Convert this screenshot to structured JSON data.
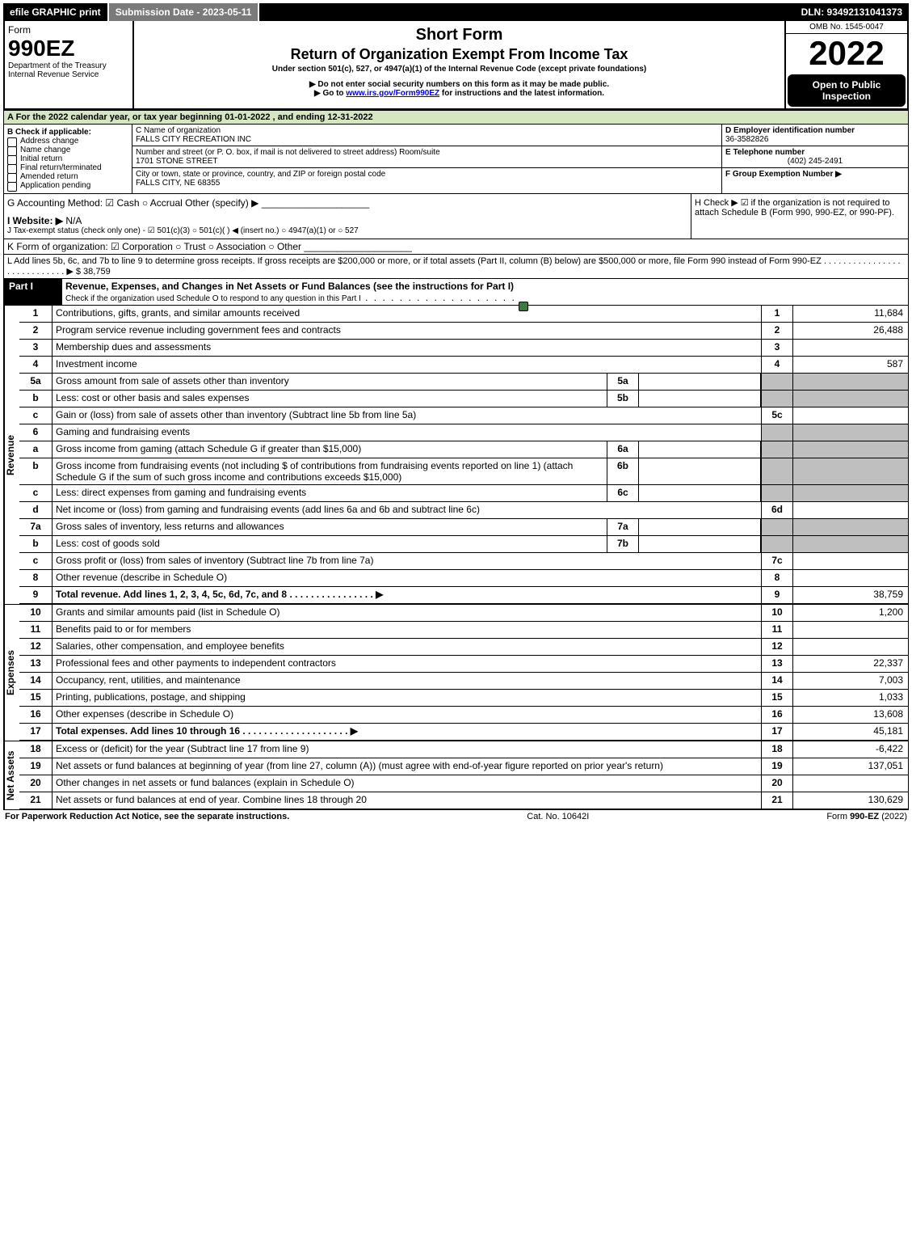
{
  "topbar": {
    "efile": "efile GRAPHIC print",
    "sub": "Submission Date - 2023-05-11",
    "dln": "DLN: 93492131041373"
  },
  "header": {
    "form": "Form",
    "formnum": "990EZ",
    "dept": "Department of the Treasury\nInternal Revenue Service",
    "title1": "Short Form",
    "title2": "Return of Organization Exempt From Income Tax",
    "under": "Under section 501(c), 527, or 4947(a)(1) of the Internal Revenue Code (except private foundations)",
    "warn": "▶ Do not enter social security numbers on this form as it may be made public.",
    "goto": "▶ Go to www.irs.gov/Form990EZ for instructions and the latest information.",
    "omb": "OMB No. 1545-0047",
    "year": "2022",
    "open": "Open to Public Inspection"
  },
  "A": "A  For the 2022 calendar year, or tax year beginning 01-01-2022 , and ending 12-31-2022",
  "B": {
    "title": "B  Check if applicable:",
    "opts": [
      "Address change",
      "Name change",
      "Initial return",
      "Final return/terminated",
      "Amended return",
      "Application pending"
    ]
  },
  "C": {
    "lab": "C Name of organization",
    "name": "FALLS CITY RECREATION INC",
    "addrlab": "Number and street (or P. O. box, if mail is not delivered to street address)        Room/suite",
    "addr": "1701 STONE STREET",
    "citylab": "City or town, state or province, country, and ZIP or foreign postal code",
    "city": "FALLS CITY, NE  68355"
  },
  "D": {
    "lab": "D Employer identification number",
    "val": "36-3582826"
  },
  "E": {
    "lab": "E Telephone number",
    "val": "(402) 245-2491"
  },
  "F": {
    "lab": "F Group Exemption Number  ▶"
  },
  "G": "G Accounting Method:   ☑ Cash   ○ Accrual   Other (specify) ▶ ____________________",
  "H": "H   Check ▶ ☑ if the organization is not required to attach Schedule B (Form 990, 990-EZ, or 990-PF).",
  "I": "I Website: ▶ N/A",
  "J": "J Tax-exempt status (check only one) - ☑ 501(c)(3)  ○ 501(c)(  ) ◀ (insert no.)  ○ 4947(a)(1) or  ○ 527",
  "K": "K Form of organization:   ☑ Corporation   ○ Trust   ○ Association   ○ Other  ____________________",
  "L": "L Add lines 5b, 6c, and 7b to line 9 to determine gross receipts. If gross receipts are $200,000 or more, or if total assets (Part II, column (B) below) are $500,000 or more, file Form 990 instead of Form 990-EZ .  .  .  .  .  .  .  .  .  .  .  .  .  .  .  .  .  .  .  .  .  .  .  .  .  .  .  .  ▶ $ 38,759",
  "part1": {
    "title": "Part I",
    "desc": "Revenue, Expenses, and Changes in Net Assets or Fund Balances (see the instructions for Part I)",
    "check": "Check if the organization used Schedule O to respond to any question in this Part I"
  },
  "revenue": [
    {
      "n": "1",
      "d": "Contributions, gifts, grants, and similar amounts received",
      "l": "1",
      "v": "11,684"
    },
    {
      "n": "2",
      "d": "Program service revenue including government fees and contracts",
      "l": "2",
      "v": "26,488"
    },
    {
      "n": "3",
      "d": "Membership dues and assessments",
      "l": "3",
      "v": ""
    },
    {
      "n": "4",
      "d": "Investment income",
      "l": "4",
      "v": "587"
    },
    {
      "n": "5a",
      "d": "Gross amount from sale of assets other than inventory",
      "mini": "5a",
      "grey": true
    },
    {
      "n": "b",
      "d": "Less: cost or other basis and sales expenses",
      "mini": "5b",
      "grey": true
    },
    {
      "n": "c",
      "d": "Gain or (loss) from sale of assets other than inventory (Subtract line 5b from line 5a)",
      "l": "5c",
      "v": ""
    },
    {
      "n": "6",
      "d": "Gaming and fundraising events",
      "grey": true,
      "noline": true
    },
    {
      "n": "a",
      "d": "Gross income from gaming (attach Schedule G if greater than $15,000)",
      "mini": "6a",
      "grey": true
    },
    {
      "n": "b",
      "d": "Gross income from fundraising events (not including $                     of contributions from fundraising events reported on line 1) (attach Schedule G if the sum of such gross income and contributions exceeds $15,000)",
      "mini": "6b",
      "grey": true
    },
    {
      "n": "c",
      "d": "Less: direct expenses from gaming and fundraising events",
      "mini": "6c",
      "grey": true
    },
    {
      "n": "d",
      "d": "Net income or (loss) from gaming and fundraising events (add lines 6a and 6b and subtract line 6c)",
      "l": "6d",
      "v": ""
    },
    {
      "n": "7a",
      "d": "Gross sales of inventory, less returns and allowances",
      "mini": "7a",
      "grey": true
    },
    {
      "n": "b",
      "d": "Less: cost of goods sold",
      "mini": "7b",
      "grey": true
    },
    {
      "n": "c",
      "d": "Gross profit or (loss) from sales of inventory (Subtract line 7b from line 7a)",
      "l": "7c",
      "v": ""
    },
    {
      "n": "8",
      "d": "Other revenue (describe in Schedule O)",
      "l": "8",
      "v": ""
    },
    {
      "n": "9",
      "d": "Total revenue. Add lines 1, 2, 3, 4, 5c, 6d, 7c, and 8    .   .   .   .   .   .   .   .   .   .   .   .   .   .   .   .      ▶",
      "l": "9",
      "v": "38,759",
      "bold": true
    }
  ],
  "expenses": [
    {
      "n": "10",
      "d": "Grants and similar amounts paid (list in Schedule O)",
      "l": "10",
      "v": "1,200"
    },
    {
      "n": "11",
      "d": "Benefits paid to or for members",
      "l": "11",
      "v": ""
    },
    {
      "n": "12",
      "d": "Salaries, other compensation, and employee benefits",
      "l": "12",
      "v": ""
    },
    {
      "n": "13",
      "d": "Professional fees and other payments to independent contractors",
      "l": "13",
      "v": "22,337"
    },
    {
      "n": "14",
      "d": "Occupancy, rent, utilities, and maintenance",
      "l": "14",
      "v": "7,003"
    },
    {
      "n": "15",
      "d": "Printing, publications, postage, and shipping",
      "l": "15",
      "v": "1,033"
    },
    {
      "n": "16",
      "d": "Other expenses (describe in Schedule O)",
      "l": "16",
      "v": "13,608"
    },
    {
      "n": "17",
      "d": "Total expenses. Add lines 10 through 16       .   .   .   .   .   .   .   .   .   .   .   .   .   .   .   .   .   .   .   .    ▶",
      "l": "17",
      "v": "45,181",
      "bold": true
    }
  ],
  "netassets": [
    {
      "n": "18",
      "d": "Excess or (deficit) for the year (Subtract line 17 from line 9)",
      "l": "18",
      "v": "-6,422"
    },
    {
      "n": "19",
      "d": "Net assets or fund balances at beginning of year (from line 27, column (A)) (must agree with end-of-year figure reported on prior year's return)",
      "l": "19",
      "v": "137,051"
    },
    {
      "n": "20",
      "d": "Other changes in net assets or fund balances (explain in Schedule O)",
      "l": "20",
      "v": ""
    },
    {
      "n": "21",
      "d": "Net assets or fund balances at end of year. Combine lines 18 through 20",
      "l": "21",
      "v": "130,629"
    }
  ],
  "footer": {
    "left": "For Paperwork Reduction Act Notice, see the separate instructions.",
    "mid": "Cat. No. 10642I",
    "right": "Form 990-EZ (2022)"
  }
}
